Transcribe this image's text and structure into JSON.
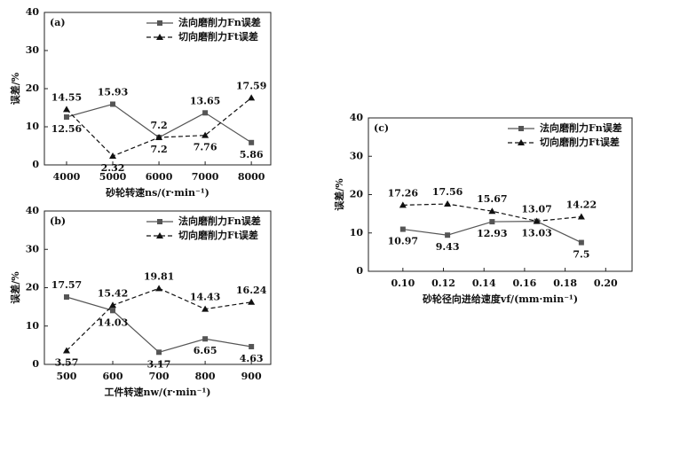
{
  "chart_data": [
    {
      "type": "line",
      "label": "(a)",
      "x_label": "砂轮转速ns/(r·min⁻¹)",
      "y_label": "误差/%",
      "x": [
        4000,
        5000,
        6000,
        7000,
        8000
      ],
      "xlim": [
        3520,
        8420
      ],
      "xticks": [
        4000,
        5000,
        6000,
        7000,
        8000
      ],
      "ylim": [
        0,
        40
      ],
      "yticks": [
        0,
        10,
        20,
        30,
        40
      ],
      "legend": "upper right",
      "series": [
        {
          "name": "法向磨削力Fn误差",
          "color": "#555555",
          "marker": "square",
          "dash": false,
          "values": [
            12.56,
            15.93,
            7.2,
            13.65,
            5.86
          ]
        },
        {
          "name": "切向磨削力Ft误差",
          "color": "#111111",
          "marker": "triangle",
          "dash": true,
          "values": [
            14.55,
            2.32,
            7.2,
            7.76,
            17.59
          ]
        }
      ]
    },
    {
      "type": "line",
      "label": "(b)",
      "x_label": "工件转速nw/(r·min⁻¹)",
      "y_label": "误差/%",
      "x": [
        500,
        600,
        700,
        800,
        900
      ],
      "xlim": [
        452,
        942
      ],
      "xticks": [
        500,
        600,
        700,
        800,
        900
      ],
      "ylim": [
        0,
        40
      ],
      "yticks": [
        0,
        10,
        20,
        30,
        40
      ],
      "legend": "upper right",
      "series": [
        {
          "name": "法向磨削力Fn误差",
          "color": "#555555",
          "marker": "square",
          "dash": false,
          "values": [
            17.57,
            14.03,
            3.17,
            6.65,
            4.63
          ]
        },
        {
          "name": "切向磨削力Ft误差",
          "color": "#111111",
          "marker": "triangle",
          "dash": true,
          "values": [
            3.57,
            15.42,
            19.81,
            14.43,
            16.24
          ]
        }
      ]
    },
    {
      "type": "line",
      "label": "(c)",
      "x_label": "砂轮径向进给速度vf/(mm·min⁻¹)",
      "y_label": "误差/%",
      "x": [
        0.1,
        0.122,
        0.144,
        0.166,
        0.188
      ],
      "xlim": [
        0.083,
        0.213
      ],
      "xticks": [
        {
          "value": 0.1,
          "label": "0.10"
        },
        0.12,
        0.14,
        0.16,
        0.18,
        {
          "value": 0.2,
          "label": "0.20"
        }
      ],
      "ylim": [
        0,
        40
      ],
      "yticks": [
        0,
        10,
        20,
        30,
        40
      ],
      "legend": "upper right",
      "series": [
        {
          "name": "法向磨削力Fn误差",
          "color": "#555555",
          "marker": "square",
          "dash": false,
          "values": [
            10.97,
            9.43,
            12.93,
            13.03,
            7.5
          ]
        },
        {
          "name": "切向磨削力Ft误差",
          "color": "#111111",
          "marker": "triangle",
          "dash": true,
          "values": [
            17.26,
            17.56,
            15.67,
            13.07,
            14.22
          ]
        }
      ]
    }
  ]
}
